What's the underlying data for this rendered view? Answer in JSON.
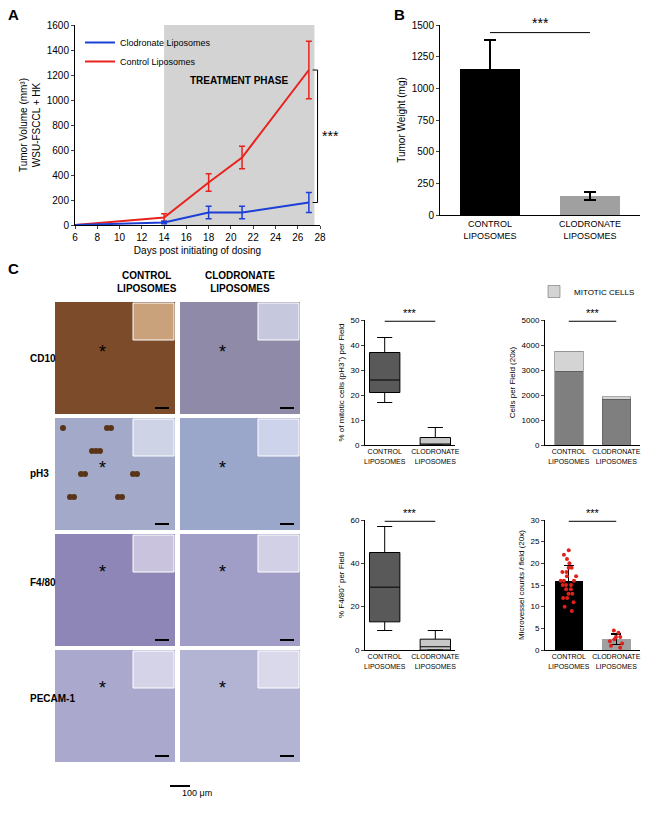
{
  "chart_data": [
    {
      "panel": "A",
      "type": "line",
      "x_label": "Days post initiating of dosing",
      "y_label": [
        "Tumor Volume (mm³)",
        "WSU-FSCCL + HK"
      ],
      "x": [
        6,
        14,
        18,
        21,
        27
      ],
      "series": [
        {
          "name": "Control Liposomes",
          "color": "#e8231e",
          "values": [
            0,
            60,
            340,
            540,
            1240
          ],
          "error": [
            0,
            30,
            70,
            90,
            230
          ]
        },
        {
          "name": "Clodronate Liposomes",
          "color": "#1c3fd6",
          "values": [
            0,
            20,
            100,
            100,
            180
          ],
          "error": [
            0,
            10,
            50,
            50,
            80
          ]
        }
      ],
      "xlim": [
        6,
        28
      ],
      "xticks": [
        6,
        8,
        10,
        12,
        14,
        16,
        18,
        20,
        22,
        24,
        26,
        28
      ],
      "ylim": [
        0,
        1600
      ],
      "yticks": [
        0,
        200,
        400,
        600,
        800,
        1000,
        1200,
        1400,
        1600
      ],
      "grid": false,
      "legend": "top left",
      "treatment_phase": [
        14,
        27.5
      ],
      "annotations": [
        "TREATMENT PHASE"
      ],
      "significance": "***"
    },
    {
      "panel": "B",
      "type": "bar",
      "y_label": "Tumor Weight (mg)",
      "categories": [
        "CONTROL LIPOSOMES",
        "CLODRONATE LIPOSOMES"
      ],
      "values": [
        1150,
        150
      ],
      "error": [
        230,
        30
      ],
      "colors": [
        "#000000",
        "#a0a0a0"
      ],
      "ylim": [
        0,
        1500
      ],
      "yticks": [
        0,
        250,
        500,
        750,
        1000,
        1250,
        1500
      ],
      "grid": false,
      "significance": "***"
    },
    {
      "type": "box",
      "y_label": "% of mitotic cells (pH3⁺) per Field",
      "categories": [
        "CONTROL LIPOSOMES",
        "CLODRONATE LIPOSOMES"
      ],
      "boxes": [
        {
          "min": 17,
          "q1": 21,
          "median": 26,
          "q3": 37,
          "max": 43
        },
        {
          "min": 0,
          "q1": 0,
          "median": 0,
          "q3": 3,
          "max": 7
        }
      ],
      "colors": [
        "#595959",
        "#c8c8c8"
      ],
      "ylim": [
        0,
        50
      ],
      "yticks": [
        0,
        10,
        20,
        30,
        40,
        50
      ],
      "grid": false,
      "significance": "***"
    },
    {
      "type": "bar",
      "stacked": true,
      "y_label": "Cells per Field (20x)",
      "categories": [
        "CONTROL LIPOSOMES",
        "CLODRONATE LIPOSOMES"
      ],
      "series": [
        {
          "color": "#7f7f7f",
          "values": [
            2950,
            1830
          ]
        },
        {
          "name": "MITOTIC CELLS",
          "color": "#d4d4d4",
          "values": [
            800,
            100
          ]
        }
      ],
      "ylim": [
        0,
        5000
      ],
      "yticks": [
        0,
        1000,
        2000,
        3000,
        4000,
        5000
      ],
      "grid": false,
      "legend": "top right",
      "significance": "***"
    },
    {
      "type": "box",
      "y_label": "% F4/80⁺ per Field",
      "categories": [
        "CONTROL LIPOSOMES",
        "CLODRONATE LIPOSOMES"
      ],
      "boxes": [
        {
          "min": 9,
          "q1": 13,
          "median": 29,
          "q3": 45,
          "max": 57
        },
        {
          "min": 0,
          "q1": 0,
          "median": 1.5,
          "q3": 5,
          "max": 9
        }
      ],
      "colors": [
        "#595959",
        "#c8c8c8"
      ],
      "ylim": [
        0,
        60
      ],
      "yticks": [
        0,
        20,
        40,
        60
      ],
      "grid": false,
      "significance": "***"
    },
    {
      "type": "bar",
      "y_label": "Microvessel counts / field (20x)",
      "categories": [
        "CONTROL LIPOSOMES",
        "CLODRONATE LIPOSOMES"
      ],
      "values": [
        16,
        2.5
      ],
      "error": [
        3.5,
        1.2
      ],
      "colors": [
        "#000000",
        "#a0a0a0"
      ],
      "points": {
        "color": "#e0201b",
        "values": [
          [
            9,
            10,
            11,
            12,
            12,
            13,
            13,
            14,
            14,
            15,
            15,
            15,
            16,
            16,
            16,
            17,
            17,
            18,
            18,
            19,
            19,
            20,
            21,
            22,
            23
          ],
          [
            0.5,
            1,
            1.5,
            2,
            2.5,
            3,
            3,
            4,
            4.5
          ]
        ]
      },
      "ylim": [
        0,
        30
      ],
      "yticks": [
        0,
        5,
        10,
        15,
        20,
        25,
        30
      ],
      "grid": false,
      "significance": "***"
    }
  ],
  "micrographs": {
    "panel": "C",
    "columns": [
      "CONTROL LIPOSOMES",
      "CLODRONATE LIPOSOMES"
    ],
    "rows": [
      "CD10",
      "pH3",
      "F4/80",
      "PECAM-1"
    ],
    "asterisk": "*",
    "scale_bar": "100 μm"
  }
}
